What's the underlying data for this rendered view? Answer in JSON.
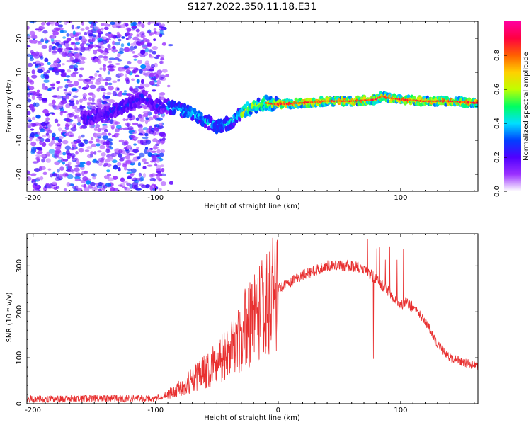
{
  "title": "S127.2022.350.11.18.E31",
  "chart_data": [
    {
      "type": "heatmap",
      "xlabel": "Height of straight line (km)",
      "ylabel": "Frequency (Hz)",
      "xlim": [
        -205,
        163
      ],
      "ylim": [
        -25,
        25
      ],
      "xticks": [
        -200,
        -100,
        0,
        100
      ],
      "yticks": [
        -20,
        -10,
        0,
        10,
        20
      ],
      "colorbar": {
        "label": "Normalized spectral amplitude",
        "range": [
          0,
          1
        ],
        "ticks": [
          "0.0",
          "0.2",
          "0.4",
          "0.6",
          "0.8"
        ],
        "colors": [
          "#ffffff",
          "#9b30ff",
          "#5000ff",
          "#0040ff",
          "#00e0ff",
          "#00ff60",
          "#c0ff00",
          "#ffd000",
          "#ff6000",
          "#ff0040",
          "#ff00a0"
        ]
      },
      "ridge": {
        "x": [
          -155,
          -140,
          -125,
          -110,
          -100,
          -90,
          -80,
          -70,
          -60,
          -50,
          -40,
          -30,
          -20,
          -10,
          0,
          20,
          40,
          60,
          80,
          85,
          90,
          100,
          120,
          140,
          163
        ],
        "y": [
          -3.5,
          -2,
          0,
          3,
          0,
          0,
          -1,
          -2,
          -4,
          -6,
          -5,
          -2,
          0,
          1,
          0.5,
          1,
          1.5,
          1.5,
          2,
          3,
          2.5,
          2,
          1.5,
          1.5,
          1
        ]
      }
    },
    {
      "type": "line",
      "xlabel": "Height of straight line (km)",
      "ylabel": "SNR (10 * v/v)",
      "xlim": [
        -205,
        163
      ],
      "ylim": [
        0,
        370
      ],
      "xticks": [
        -200,
        -100,
        0,
        100
      ],
      "yticks": [
        0,
        100,
        200,
        300
      ],
      "color": "#e83030",
      "envelope": {
        "x": [
          -205,
          -100,
          -90,
          -80,
          -60,
          -40,
          -30,
          -20,
          -10,
          0,
          20,
          40,
          60,
          70,
          80,
          90,
          100,
          105,
          110,
          120,
          130,
          140,
          163
        ],
        "y": [
          10,
          12,
          20,
          35,
          70,
          110,
          150,
          190,
          230,
          250,
          280,
          300,
          300,
          295,
          270,
          245,
          215,
          220,
          210,
          180,
          130,
          100,
          80
        ]
      }
    }
  ]
}
